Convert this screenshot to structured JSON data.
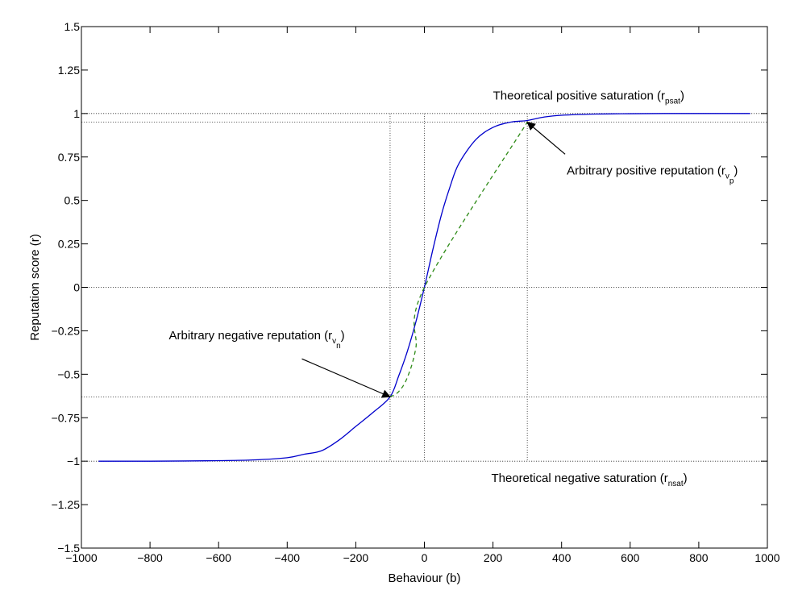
{
  "chart_data": {
    "type": "line",
    "xlabel": "Behaviour (b)",
    "ylabel": "Reputation score (r)",
    "xlim": [
      -1000,
      1000
    ],
    "ylim": [
      -1.5,
      1.5
    ],
    "x_ticks": [
      -1000,
      -800,
      -600,
      -400,
      -200,
      0,
      200,
      400,
      600,
      800,
      1000
    ],
    "y_ticks": [
      -1.5,
      -1.25,
      -1,
      -0.75,
      -0.5,
      -0.25,
      0,
      0.25,
      0.5,
      0.75,
      1,
      1.25,
      1.5
    ],
    "x_tick_labels": [
      "−1000",
      "−800",
      "−600",
      "−400",
      "−200",
      "0",
      "200",
      "400",
      "600",
      "800",
      "1000"
    ],
    "y_tick_labels": [
      "−1.5",
      "−1.25",
      "−1",
      "−0.75",
      "−0.5",
      "−0.25",
      "0",
      "0.25",
      "0.5",
      "0.75",
      "1",
      "1.25",
      "1.5"
    ],
    "grid": false,
    "series": [
      {
        "color": "#0000cc",
        "style": "solid",
        "x": [
          -950,
          -900,
          -800,
          -700,
          -600,
          -500,
          -400,
          -350,
          -300,
          -250,
          -200,
          -150,
          -100,
          -75,
          -50,
          -25,
          0,
          25,
          50,
          75,
          100,
          150,
          200,
          250,
          300,
          350,
          400,
          500,
          600,
          700,
          800,
          900,
          950
        ],
        "y": [
          -1.0,
          -1.0,
          -1.0,
          -0.999,
          -0.997,
          -0.993,
          -0.98,
          -0.96,
          -0.94,
          -0.88,
          -0.8,
          -0.72,
          -0.63,
          -0.51,
          -0.37,
          -0.2,
          0.0,
          0.22,
          0.42,
          0.58,
          0.71,
          0.85,
          0.92,
          0.95,
          0.96,
          0.98,
          0.99,
          0.997,
          0.999,
          1.0,
          1.0,
          1.0,
          1.0
        ]
      },
      {
        "color": "#2e8b17",
        "style": "dashed",
        "x": [
          -100,
          -75,
          -50,
          -25,
          0,
          300
        ],
        "y": [
          -0.63,
          -0.6,
          -0.52,
          -0.35,
          0.0,
          0.95
        ]
      }
    ],
    "reference_lines": {
      "horizontal": [
        1.0,
        0.95,
        0.0,
        -0.63,
        -1.0
      ],
      "vertical": [
        -100,
        0,
        300
      ]
    },
    "annotations": [
      {
        "text": "Theoretical positive saturation (r",
        "subscript": "psat",
        "close": ")",
        "x": 200,
        "y": 1.08
      },
      {
        "text": "Arbitrary positive reputation (r",
        "subscript": "v",
        "subsub": "p",
        "close": ")",
        "x": 415,
        "y": 0.65,
        "arrow_to": [
          300,
          0.95
        ]
      },
      {
        "text": "Arbitrary negative reputation (r",
        "subscript": "v",
        "subsub": "n",
        "close": ")",
        "x": -745,
        "y": -0.3,
        "arrow_to": [
          -100,
          -0.63
        ]
      },
      {
        "text": "Theoretical negative saturation (r",
        "subscript": "nsat",
        "close": ")",
        "x": 195,
        "y": -1.12
      }
    ]
  }
}
